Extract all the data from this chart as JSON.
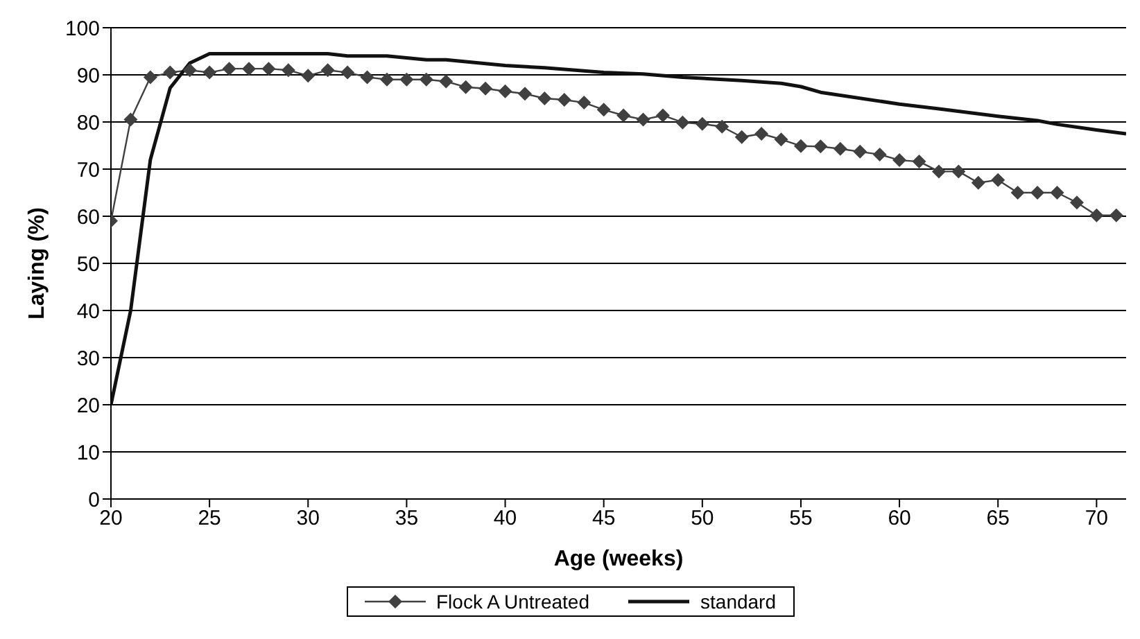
{
  "chart_data": {
    "type": "line",
    "xlabel": "Age (weeks)",
    "ylabel": "Laying (%)",
    "xlim": [
      20,
      71.5
    ],
    "ylim": [
      0,
      100
    ],
    "xticks": [
      20,
      25,
      30,
      35,
      40,
      45,
      50,
      55,
      60,
      65,
      70
    ],
    "yticks": [
      0,
      10,
      20,
      30,
      40,
      50,
      60,
      70,
      80,
      90,
      100
    ],
    "grid": "y",
    "legend": "bottom",
    "line_style": "solid",
    "series": [
      {
        "name": "Flock A Untreated",
        "color": "#404040",
        "marker": "diamond",
        "x": [
          20,
          21,
          22,
          23,
          24,
          25,
          26,
          27,
          28,
          29,
          30,
          31,
          32,
          33,
          34,
          35,
          36,
          37,
          38,
          39,
          40,
          41,
          42,
          43,
          44,
          45,
          46,
          47,
          48,
          49,
          50,
          51,
          52,
          53,
          54,
          55,
          56,
          57,
          58,
          59,
          60,
          61,
          62,
          63,
          64,
          65,
          66,
          67,
          68,
          69,
          70,
          71
        ],
        "values": [
          59,
          80.5,
          89.5,
          90.5,
          91,
          90.5,
          91.3,
          91.3,
          91.3,
          91,
          89.8,
          91,
          90.5,
          89.5,
          89,
          89,
          89,
          88.6,
          87.4,
          87.1,
          86.5,
          86,
          85,
          84.7,
          84.1,
          82.6,
          81.4,
          80.5,
          81.4,
          79.9,
          79.6,
          79,
          76.8,
          77.5,
          76.3,
          74.9,
          74.8,
          74.3,
          73.7,
          73.1,
          71.9,
          71.6,
          69.5,
          69.5,
          67.1,
          67.7,
          65,
          65,
          65,
          62.9,
          60.2,
          60.2
        ]
      },
      {
        "name": "standard",
        "color": "#111111",
        "marker": "none",
        "x": [
          20,
          21,
          22,
          23,
          24,
          25,
          31,
          32,
          34,
          36,
          37,
          40,
          42,
          45,
          47,
          49,
          52,
          54,
          55,
          56,
          60,
          62,
          65,
          67,
          68,
          70,
          71.5
        ],
        "values": [
          20,
          40,
          72,
          87.2,
          92.5,
          94.5,
          94.5,
          94,
          94,
          93.2,
          93.2,
          92,
          91.5,
          90.5,
          90.2,
          89.5,
          88.8,
          88.2,
          87.5,
          86.3,
          83.8,
          82.8,
          81.2,
          80.3,
          79.5,
          78.3,
          77.5
        ]
      }
    ]
  }
}
